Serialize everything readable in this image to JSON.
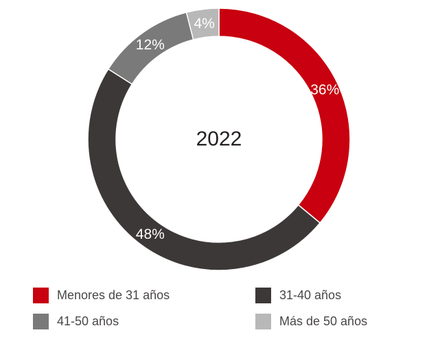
{
  "chart_data": {
    "type": "pie",
    "variant": "donut",
    "center_label": "2022",
    "legend_position": "bottom",
    "slices": [
      {
        "label": "Menores de 31 años",
        "value": 36,
        "display": "36%",
        "color": "#c8000f"
      },
      {
        "label": "31-40 años",
        "value": 48,
        "display": "48%",
        "color": "#3d3838"
      },
      {
        "label": "41-50 años",
        "value": 12,
        "display": "12%",
        "color": "#7b7a7a"
      },
      {
        "label": "Más de 50 años",
        "value": 4,
        "display": "4%",
        "color": "#b8b8b8"
      }
    ]
  }
}
